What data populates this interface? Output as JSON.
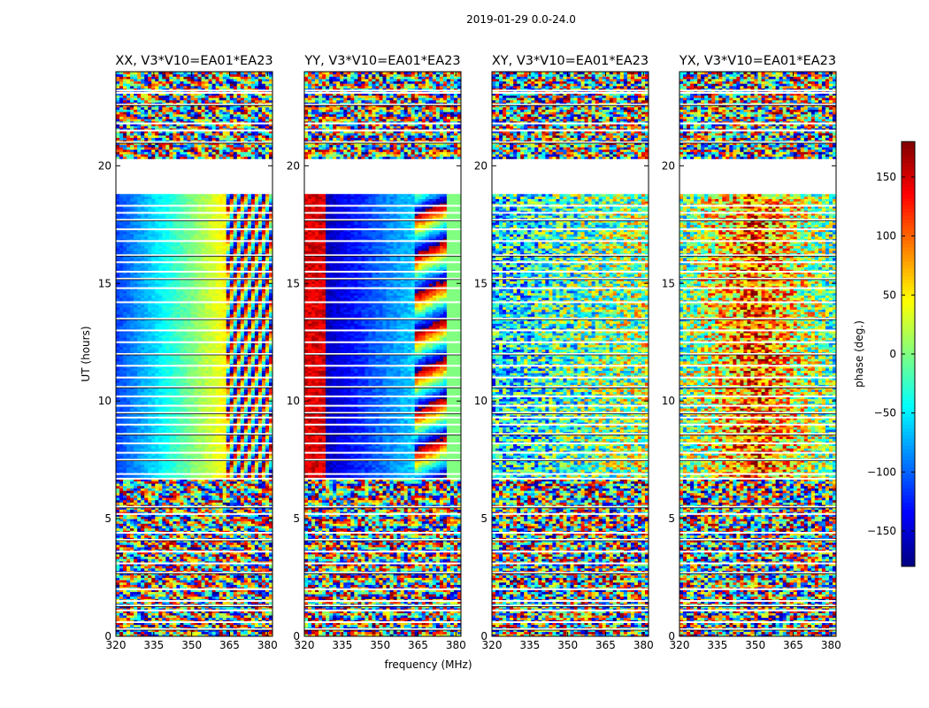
{
  "chart_data": {
    "type": "heatmap",
    "suptitle": "2019-01-29 0.0-24.0",
    "xlabel": "frequency (MHz)",
    "ylabel": "UT (hours)",
    "xlim": [
      320,
      382
    ],
    "ylim": [
      0,
      24
    ],
    "xticks": [
      320,
      335,
      350,
      365,
      380
    ],
    "yticks": [
      0,
      5,
      10,
      15,
      20
    ],
    "panels": [
      {
        "title": "XX, V3*V10=EA01*EA23",
        "pattern": "xx"
      },
      {
        "title": "YY, V3*V10=EA01*EA23",
        "pattern": "yy"
      },
      {
        "title": "XY, V3*V10=EA01*EA23",
        "pattern": "xy"
      },
      {
        "title": "YX, V3*V10=EA01*EA23",
        "pattern": "yx"
      }
    ],
    "blank_hours": [
      [
        18.7,
        20.3
      ]
    ],
    "flag_lines_ut": [
      0.3,
      0.6,
      1.1,
      1.3,
      1.5,
      2.0,
      2.7,
      3.1,
      3.6,
      4.1,
      4.4,
      5.2,
      5.5,
      6.7,
      6.9,
      7.5,
      7.8,
      8.2,
      8.6,
      9.0,
      9.3,
      9.5,
      9.8,
      10.2,
      10.6,
      11.0,
      11.5,
      12.0,
      12.5,
      13.0,
      13.5,
      14.2,
      14.8,
      15.2,
      15.5,
      15.9,
      16.2,
      16.8,
      17.3,
      17.7,
      18.0,
      18.3,
      21.0,
      21.5,
      21.8,
      22.6,
      23.1,
      23.2
    ],
    "colorbar": {
      "label": "phase (deg.)",
      "range": [
        -180,
        180
      ],
      "ticks": [
        150,
        100,
        50,
        0,
        -50,
        -100,
        -150
      ],
      "tick_labels": [
        "150",
        "100",
        "50",
        "0",
        "−50",
        "−100",
        "−150"
      ],
      "colormap": "jet"
    }
  }
}
